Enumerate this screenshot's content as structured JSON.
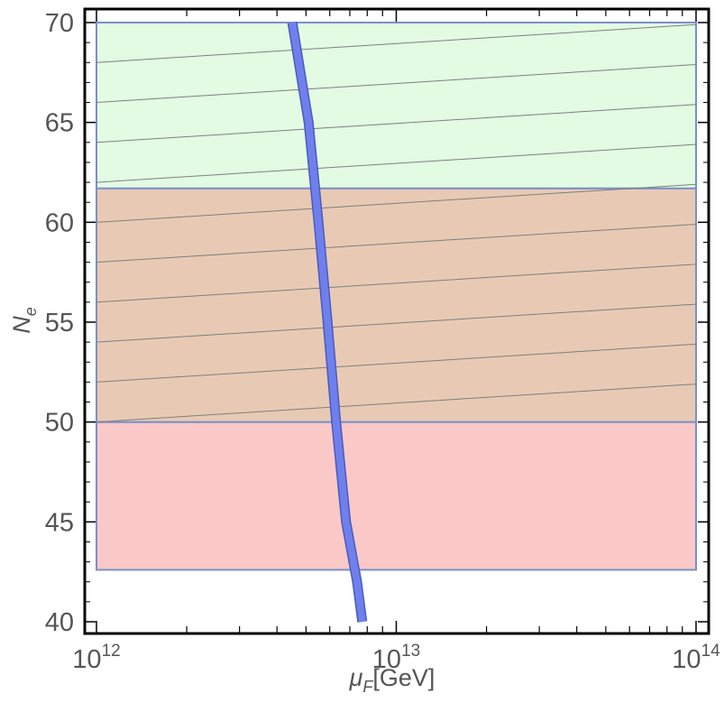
{
  "chart_data": {
    "type": "area",
    "xscale": "log10",
    "xlim": [
      1000000000000.0,
      100000000000000.0
    ],
    "ylim": [
      39.6,
      71
    ],
    "xlabel": {
      "symbol": "μ",
      "subscript": "F",
      "unit": "[GeV]"
    },
    "ylabel": {
      "symbol": "N",
      "subscript": "e"
    },
    "x_ticks": [
      {
        "base": "10",
        "exponent": "12",
        "value": 1000000000000.0
      },
      {
        "base": "10",
        "exponent": "13",
        "value": 10000000000000.0
      },
      {
        "base": "10",
        "exponent": "14",
        "value": 100000000000000.0
      }
    ],
    "y_ticks": [
      "40",
      "45",
      "50",
      "55",
      "60",
      "65",
      "70"
    ],
    "regions": [
      {
        "x": [
          1000000000000.0,
          100000000000000.0
        ],
        "y": [
          42.6,
          50.0
        ],
        "fill": "#fbc8c8",
        "stroke": "#7a8fc9"
      },
      {
        "x": [
          1000000000000.0,
          100000000000000.0
        ],
        "y": [
          50.0,
          61.7
        ],
        "fill": "#e8cab4",
        "stroke": "#7a8fc9"
      },
      {
        "x": [
          1000000000000.0,
          100000000000000.0
        ],
        "y": [
          61.7,
          70.0
        ],
        "fill": "#e2fbe2",
        "stroke": "#7a8fc9"
      }
    ],
    "contour_lines": {
      "x": [
        1000000000000.0,
        100000000000000.0
      ],
      "y_left": [
        50.0,
        52.0,
        54.0,
        56.0,
        58.0,
        60.0,
        62.0,
        64.0,
        66.0,
        68.0
      ],
      "y_right": [
        51.9,
        53.9,
        55.9,
        57.9,
        59.9,
        61.9,
        63.9,
        65.9,
        67.9,
        69.9
      ],
      "color": "#7f7f7f"
    },
    "band": {
      "x": [
        4500000000000.0,
        5100000000000.0,
        5500000000000.0,
        5900000000000.0,
        6300000000000.0,
        6800000000000.0,
        7400000000000.0,
        7700000000000.0
      ],
      "y": [
        70,
        65,
        60,
        55,
        50,
        45,
        42,
        40
      ],
      "color": "#6f80ee"
    },
    "grid": false,
    "frame": true
  }
}
